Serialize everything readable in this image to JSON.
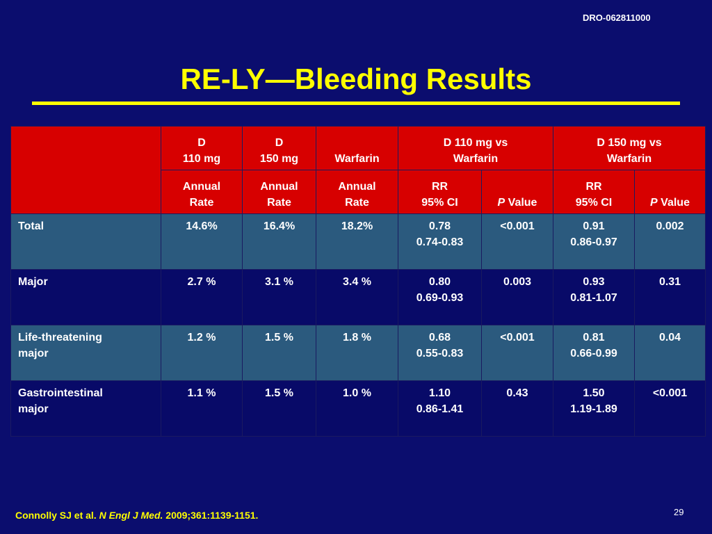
{
  "doc_id": "DRO-062811000",
  "title": "RE-LY—Bleeding Results",
  "table": {
    "header1": {
      "d110": [
        "D",
        "110 mg"
      ],
      "d150": [
        "D",
        "150 mg"
      ],
      "warfarin": "Warfarin",
      "cmp110": [
        "D 110 mg vs",
        "Warfarin"
      ],
      "cmp150": [
        "D 150 mg vs",
        "Warfarin"
      ]
    },
    "header2": {
      "annual_rate": [
        "Annual",
        "Rate"
      ],
      "rr_ci": [
        "RR",
        "95% CI"
      ],
      "p_italic": "P",
      "p_rest": " Value"
    },
    "rows": [
      {
        "label": [
          "Total"
        ],
        "d110": "14.6%",
        "d150": "16.4%",
        "warfarin": "18.2%",
        "rr110": "0.78",
        "ci110": "0.74-0.83",
        "p110": "<0.001",
        "rr150": "0.91",
        "ci150": "0.86-0.97",
        "p150": "0.002"
      },
      {
        "label": [
          "Major"
        ],
        "d110": "2.7 %",
        "d150": "3.1 %",
        "warfarin": "3.4 %",
        "rr110": "0.80",
        "ci110": "0.69-0.93",
        "p110": "0.003",
        "rr150": "0.93",
        "ci150": "0.81-1.07",
        "p150": "0.31"
      },
      {
        "label": [
          "Life-threatening",
          "major"
        ],
        "d110": "1.2 %",
        "d150": "1.5 %",
        "warfarin": "1.8 %",
        "rr110": "0.68",
        "ci110": "0.55-0.83",
        "p110": "<0.001",
        "rr150": "0.81",
        "ci150": "0.66-0.99",
        "p150": "0.04"
      },
      {
        "label": [
          "Gastrointestinal",
          "major"
        ],
        "d110": "1.1 %",
        "d150": "1.5 %",
        "warfarin": "1.0 %",
        "rr110": "1.10",
        "ci110": "0.86-1.41",
        "p110": "0.43",
        "rr150": "1.50",
        "ci150": "1.19-1.89",
        "p150": "<0.001"
      }
    ]
  },
  "footnote": {
    "authors": "Connolly SJ et al. ",
    "journal": "N Engl J Med.",
    "citation": " 2009;361:1139-1151."
  },
  "page_number": "29",
  "colors": {
    "background": "#0b0d6e",
    "title": "#ffff00",
    "header_fill": "#d70000",
    "row_alt_fill": "#2b5a7e"
  }
}
